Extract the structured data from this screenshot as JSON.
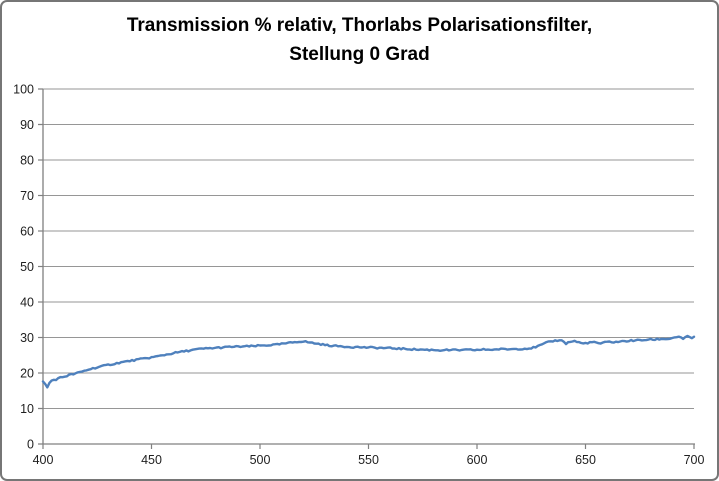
{
  "title": {
    "line1": "Transmission % relativ, Thorlabs Polarisationsfilter,",
    "line2": "Stellung 0 Grad"
  },
  "colors": {
    "line": "#4F81BD",
    "gridline": "#969696",
    "axis": "#808080",
    "tick_text": "#1f1f1f",
    "title_text": "#000000",
    "frame_border": "#767676",
    "background": "#ffffff"
  },
  "chart_data": {
    "type": "line",
    "title": "Transmission % relativ, Thorlabs Polarisationsfilter, Stellung 0 Grad",
    "xlabel": "",
    "ylabel": "",
    "xlim": [
      400,
      700
    ],
    "ylim": [
      0,
      100
    ],
    "x_ticks": [
      400,
      450,
      500,
      550,
      600,
      650,
      700
    ],
    "y_ticks": [
      0,
      10,
      20,
      30,
      40,
      50,
      60,
      70,
      80,
      90,
      100
    ],
    "grid": "horizontal",
    "legend": "none",
    "series": [
      {
        "name": "Transmission % relativ",
        "color": "#4F81BD",
        "x": [
          400,
          401,
          402,
          403,
          404,
          406,
          408,
          410,
          412,
          414,
          416,
          418,
          420,
          423,
          425,
          428,
          430,
          433,
          435,
          438,
          440,
          443,
          445,
          448,
          450,
          453,
          455,
          458,
          460,
          463,
          465,
          468,
          470,
          473,
          475,
          478,
          480,
          483,
          485,
          488,
          490,
          493,
          495,
          498,
          500,
          503,
          505,
          508,
          510,
          513,
          515,
          517,
          519,
          521,
          523,
          525,
          528,
          530,
          533,
          535,
          538,
          540,
          543,
          545,
          548,
          550,
          553,
          555,
          558,
          560,
          563,
          565,
          568,
          570,
          573,
          575,
          578,
          580,
          583,
          585,
          588,
          590,
          593,
          595,
          598,
          600,
          603,
          605,
          608,
          610,
          613,
          615,
          618,
          620,
          623,
          625,
          628,
          630,
          632,
          634,
          636,
          638,
          640,
          641,
          643,
          645,
          647,
          649,
          651,
          653,
          655,
          657,
          659,
          661,
          663,
          665,
          667,
          669,
          671,
          673,
          675,
          677,
          679,
          681,
          683,
          685,
          687,
          689,
          691,
          693,
          694,
          695,
          696,
          697,
          698,
          699,
          700
        ],
        "y": [
          17.6,
          16.8,
          15.9,
          17.2,
          17.9,
          18.2,
          18.7,
          19.0,
          19.4,
          19.7,
          20.0,
          20.4,
          20.8,
          21.3,
          21.6,
          22.0,
          22.3,
          22.6,
          22.9,
          23.2,
          23.4,
          23.7,
          23.9,
          24.2,
          24.4,
          24.7,
          25.0,
          25.3,
          25.6,
          25.9,
          26.1,
          26.4,
          26.6,
          26.8,
          26.9,
          27.0,
          27.1,
          27.2,
          27.3,
          27.4,
          27.4,
          27.5,
          27.5,
          27.6,
          27.7,
          27.8,
          27.9,
          28.0,
          28.2,
          28.4,
          28.6,
          28.8,
          28.9,
          28.8,
          28.6,
          28.4,
          28.1,
          27.9,
          27.7,
          27.6,
          27.5,
          27.4,
          27.3,
          27.3,
          27.2,
          27.2,
          27.1,
          27.1,
          27.0,
          27.0,
          26.9,
          26.8,
          26.8,
          26.7,
          26.6,
          26.6,
          26.5,
          26.5,
          26.4,
          26.5,
          26.4,
          26.5,
          26.4,
          26.5,
          26.5,
          26.5,
          26.6,
          26.6,
          26.6,
          26.7,
          26.7,
          26.7,
          26.8,
          26.8,
          26.9,
          27.0,
          27.5,
          28.0,
          28.5,
          28.9,
          29.1,
          29.3,
          28.9,
          28.3,
          28.8,
          29.0,
          28.6,
          28.3,
          28.5,
          28.7,
          28.5,
          28.3,
          28.6,
          28.8,
          28.7,
          28.8,
          28.9,
          29.0,
          29.1,
          29.2,
          29.2,
          29.3,
          29.4,
          29.4,
          29.5,
          29.6,
          29.6,
          29.7,
          30.0,
          30.3,
          29.9,
          29.5,
          29.9,
          30.4,
          30.1,
          29.9,
          30.2
        ]
      }
    ]
  }
}
